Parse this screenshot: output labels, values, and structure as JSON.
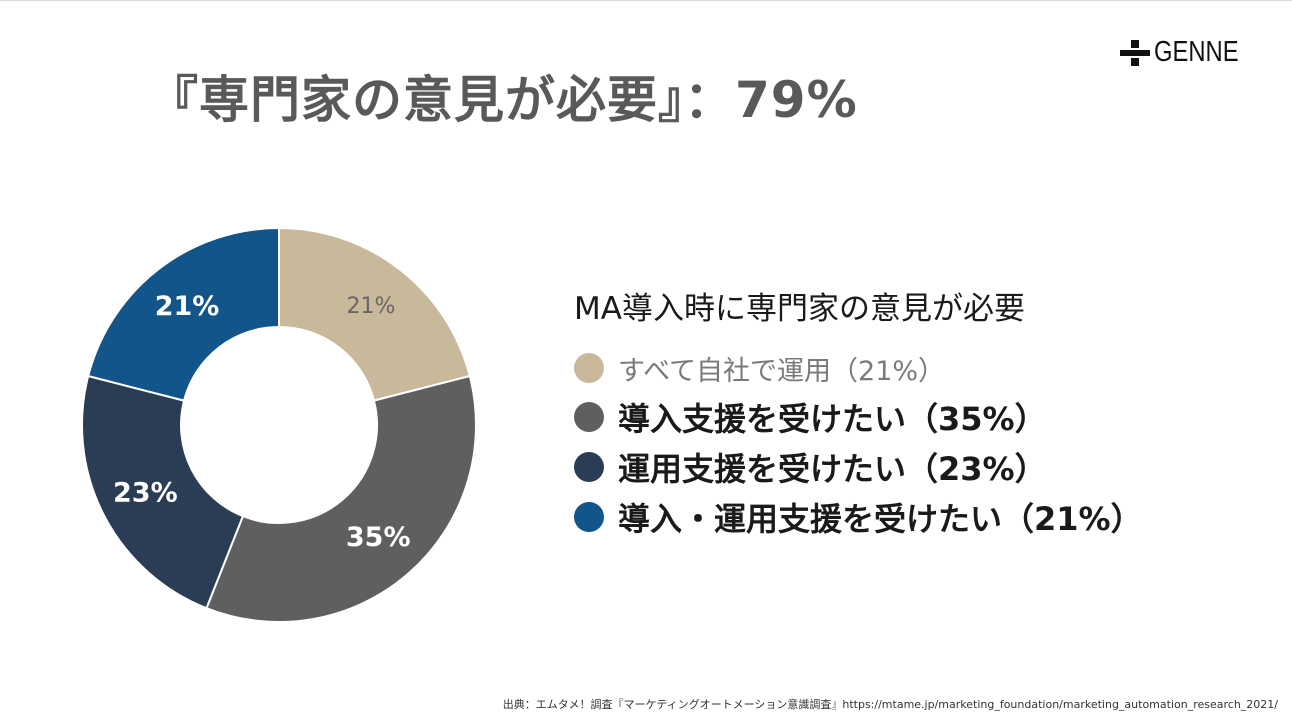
{
  "slide": {
    "title": "『専門家の意見が必要』：79%",
    "logo_text": "GENNE",
    "source": "出典：エムタメ！調査『マーケティングオートメーション意識調査』https://mtame.jp/marketing_foundation/marketing_automation_research_2021/"
  },
  "chart_data": {
    "type": "pie",
    "subtype": "donut",
    "title": "",
    "categories": [
      "すべて自社で運用",
      "導入支援を受けたい",
      "運用支援を受けたい",
      "導入・運用支援を受けたい"
    ],
    "values": [
      21,
      35,
      23,
      21
    ],
    "labels": [
      "21%",
      "35%",
      "23%",
      "21%"
    ],
    "colors": [
      "#c9b99b",
      "#5f5f5f",
      "#2a3d55",
      "#12558a"
    ],
    "label_colors": [
      "#666666",
      "#ffffff",
      "#ffffff",
      "#ffffff"
    ],
    "legend": {
      "heading": "MA導入時に専門家の意見が必要",
      "placement": "right",
      "items": [
        "すべて自社で運用（21%）",
        "導入支援を受けたい（35%）",
        "運用支援を受けたい（23%）",
        "導入・運用支援を受けたい（21%）"
      ]
    }
  }
}
